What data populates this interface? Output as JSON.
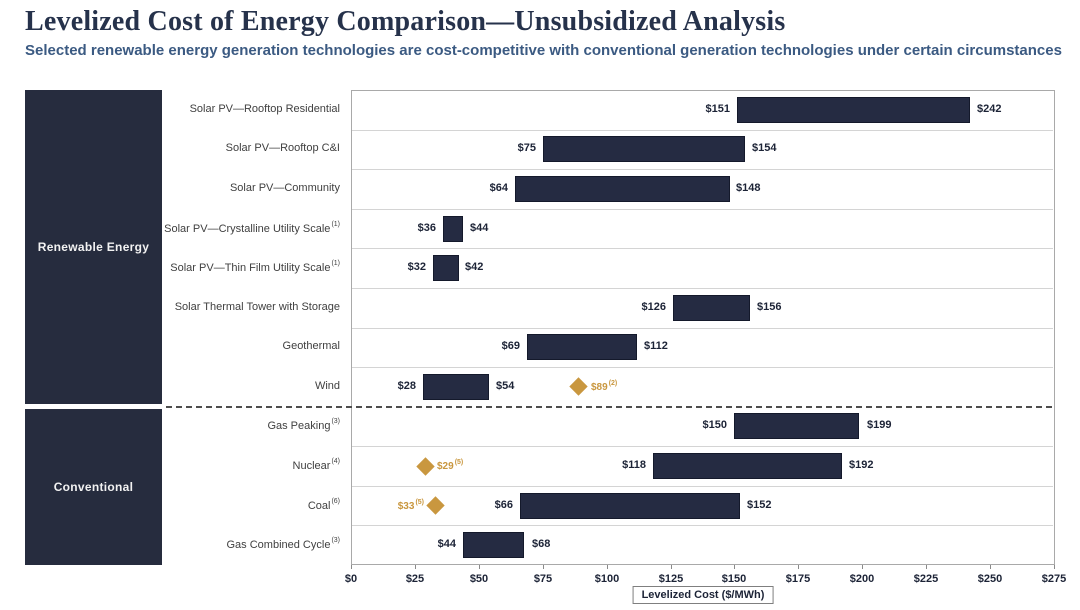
{
  "chart_data": {
    "type": "bar",
    "variant": "horizontal-range-bars",
    "title": "Levelized Cost of Energy Comparison—Unsubsidized Analysis",
    "subtitle": "Selected renewable energy generation technologies are cost-competitive with conventional generation technologies under certain circumstances",
    "xlabel": "Levelized Cost ($/MWh)",
    "xlim": [
      0,
      275
    ],
    "xticks": [
      0,
      25,
      50,
      75,
      100,
      125,
      150,
      175,
      200,
      225,
      250,
      275
    ],
    "tick_prefix": "$",
    "grid": "horizontal row separators only",
    "legend_position": "none",
    "groups": [
      {
        "label": "Renewable Energy",
        "row_span": [
          0,
          7
        ]
      },
      {
        "label": "Conventional",
        "row_span": [
          8,
          11
        ]
      }
    ],
    "rows": [
      {
        "label": "Solar PV—Rooftop Residential",
        "footnote": "",
        "low": 151,
        "high": 242
      },
      {
        "label": "Solar PV—Rooftop C&I",
        "footnote": "",
        "low": 75,
        "high": 154
      },
      {
        "label": "Solar PV—Community",
        "footnote": "",
        "low": 64,
        "high": 148
      },
      {
        "label": "Solar PV—Crystalline Utility Scale",
        "footnote": "(1)",
        "low": 36,
        "high": 44
      },
      {
        "label": "Solar PV—Thin Film Utility Scale",
        "footnote": "(1)",
        "low": 32,
        "high": 42
      },
      {
        "label": "Solar Thermal Tower with Storage",
        "footnote": "",
        "low": 126,
        "high": 156
      },
      {
        "label": "Geothermal",
        "footnote": "",
        "low": 69,
        "high": 112
      },
      {
        "label": "Wind",
        "footnote": "",
        "low": 28,
        "high": 54,
        "diamond": {
          "value": 89,
          "footnote": "(2)",
          "label_side": "right"
        }
      },
      {
        "label": "Gas Peaking",
        "footnote": "(3)",
        "low": 150,
        "high": 199
      },
      {
        "label": "Nuclear",
        "footnote": "(4)",
        "low": 118,
        "high": 192,
        "diamond": {
          "value": 29,
          "footnote": "(5)",
          "label_side": "right"
        }
      },
      {
        "label": "Coal",
        "footnote": "(6)",
        "low": 66,
        "high": 152,
        "diamond": {
          "value": 33,
          "footnote": "(5)",
          "label_side": "left"
        }
      },
      {
        "label": "Gas Combined Cycle",
        "footnote": "(3)",
        "low": 44,
        "high": 68
      }
    ],
    "colors": {
      "bar": "#252b42",
      "bar_border": "#14192b",
      "diamond": "#c9973f",
      "sidebar": "#262c3e",
      "title_text": "#26324b",
      "subtitle_text": "#3b5a82",
      "value_label": "#1c2336",
      "row_label": "#404040",
      "gridline": "#d4d4d4",
      "plot_border": "#a9a9a9"
    }
  }
}
